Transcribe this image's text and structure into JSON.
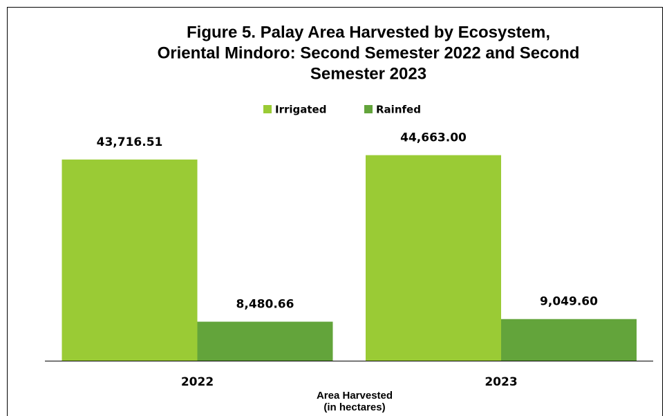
{
  "chart_data": {
    "type": "bar",
    "title": [
      "Figure 5. Palay Area Harvested by Ecosystem,",
      "Oriental Mindoro: Second Semester 2022 and  Second",
      "Semester 2023"
    ],
    "x_label": [
      "Area Harvested",
      "(in hectares)"
    ],
    "categories": [
      "2022",
      "2023"
    ],
    "series": [
      {
        "name": "Irrigated",
        "color": "#9acb35",
        "values": [
          43716.51,
          44663.0
        ],
        "value_labels": [
          "43,716.51",
          "44,663.00"
        ]
      },
      {
        "name": "Rainfed",
        "color": "#63a43b",
        "values": [
          8480.66,
          9049.6
        ],
        "value_labels": [
          "8,480.66",
          "9,049.60"
        ]
      }
    ],
    "ylim": [
      0,
      50000
    ],
    "legend": "top"
  }
}
